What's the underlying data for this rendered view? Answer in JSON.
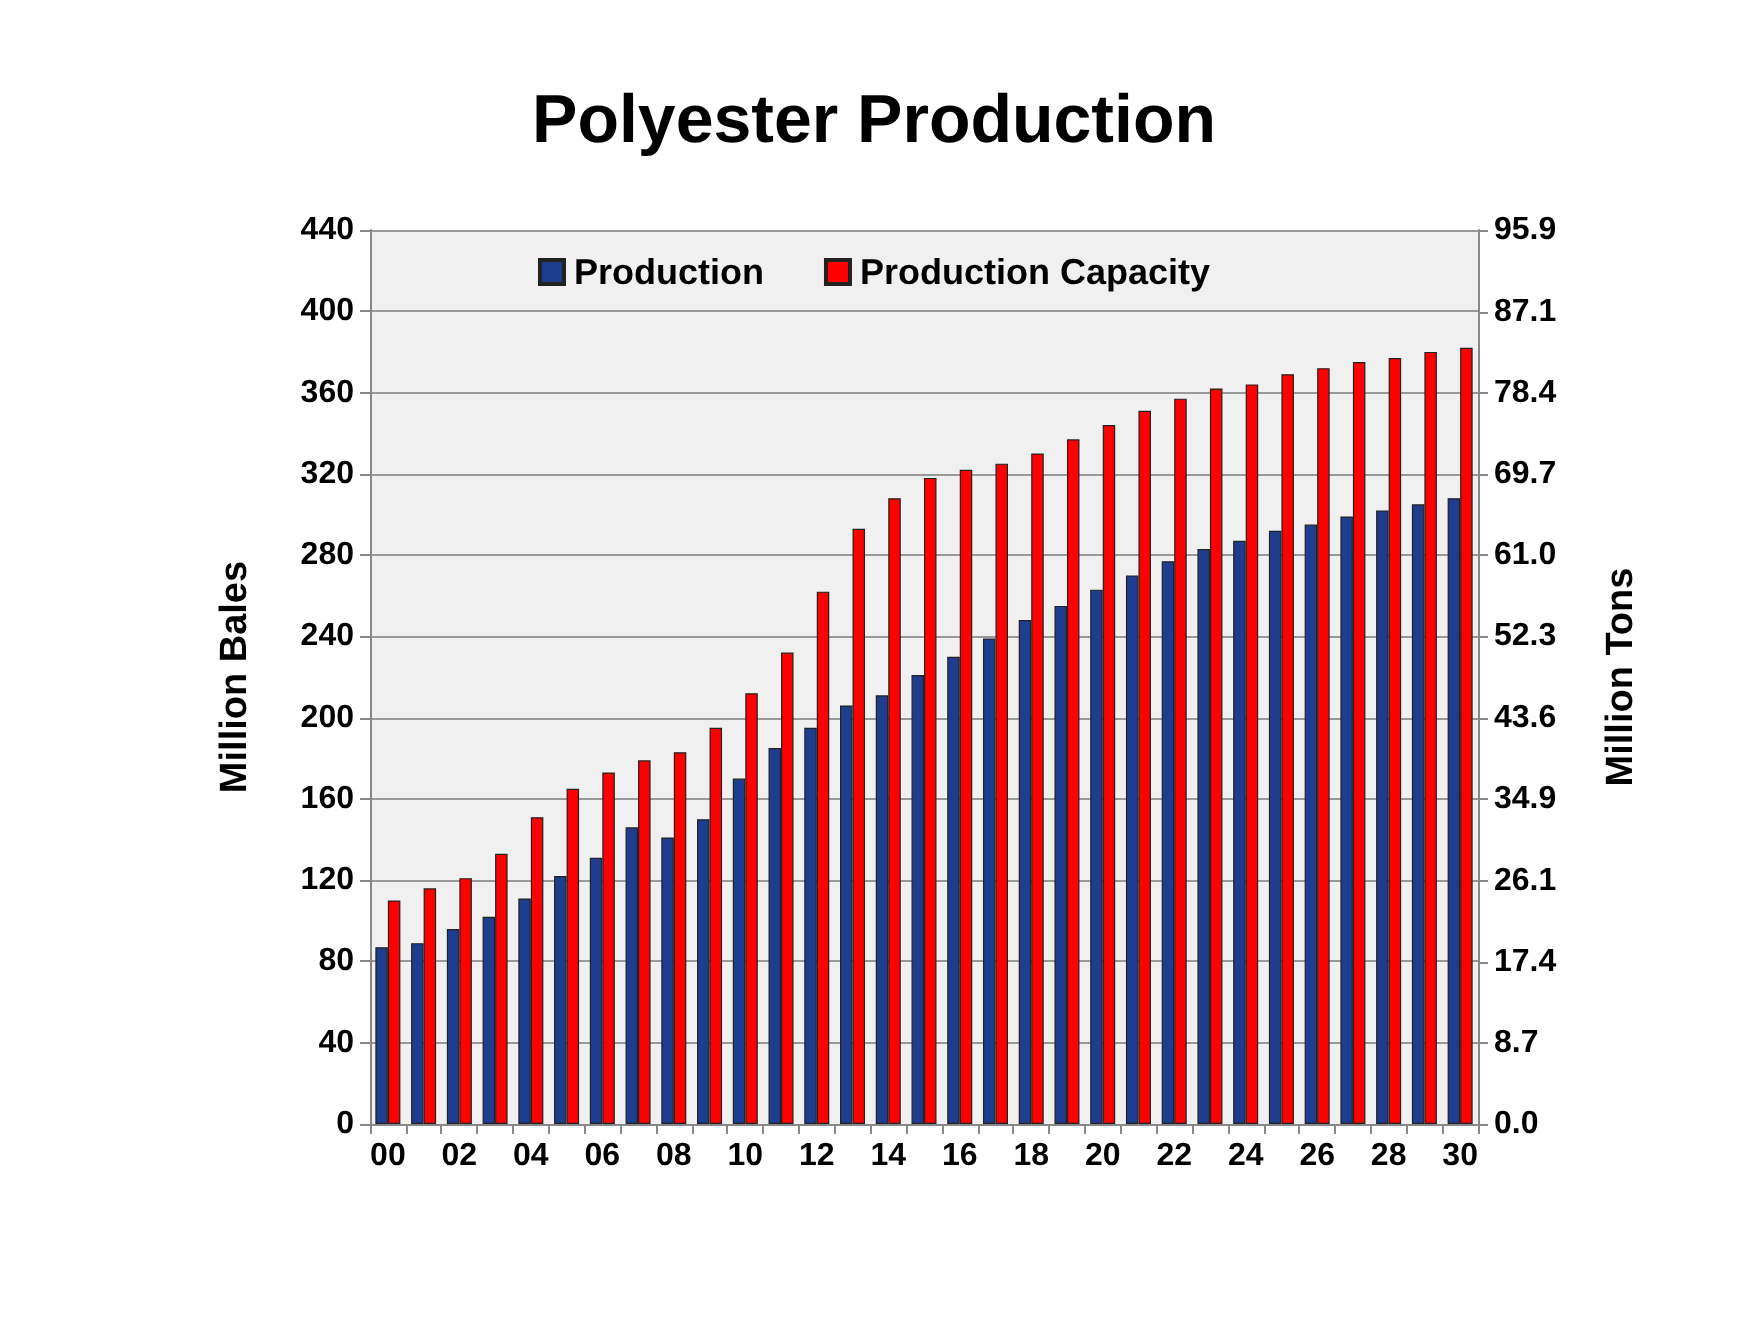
{
  "chart_data": {
    "type": "bar",
    "title": "Polyester Production",
    "ylabel": "Million Bales",
    "y2label": "Million Tons",
    "categories": [
      "00",
      null,
      "02",
      null,
      "04",
      null,
      "06",
      null,
      "08",
      null,
      "10",
      null,
      "12",
      null,
      "14",
      null,
      "16",
      null,
      "18",
      null,
      "20",
      null,
      "22",
      null,
      "24",
      null,
      "26",
      null,
      "28",
      null,
      "30"
    ],
    "series": [
      {
        "name": "Production",
        "color": "#1f3d8f",
        "values": [
          87,
          89,
          96,
          102,
          111,
          122,
          131,
          146,
          141,
          150,
          170,
          185,
          195,
          206,
          211,
          221,
          230,
          239,
          248,
          255,
          263,
          270,
          277,
          283,
          287,
          292,
          295,
          299,
          302,
          305,
          308
        ]
      },
      {
        "name": "Production Capacity",
        "color": "#ff0000",
        "values": [
          110,
          116,
          121,
          133,
          151,
          165,
          173,
          179,
          183,
          195,
          212,
          232,
          262,
          293,
          308,
          318,
          322,
          325,
          330,
          337,
          344,
          351,
          357,
          362,
          364,
          369,
          372,
          375,
          377,
          380,
          382
        ]
      }
    ],
    "ylim": [
      0,
      440
    ],
    "yticks": [
      0,
      40,
      80,
      120,
      160,
      200,
      240,
      280,
      320,
      360,
      400,
      440
    ],
    "y2lim": [
      0,
      95.9
    ],
    "y2ticks": [
      {
        "value": 0,
        "label": "0.0"
      },
      8.7,
      17.4,
      26.1,
      34.9,
      43.6,
      52.3,
      {
        "value": 61,
        "label": "61.0"
      },
      69.7,
      78.4,
      87.1,
      95.9
    ],
    "grid": "y",
    "legend": "top"
  }
}
